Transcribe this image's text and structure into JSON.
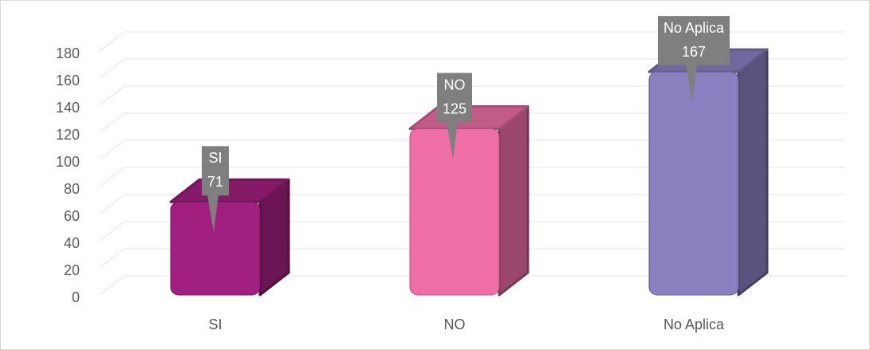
{
  "chart_data": {
    "type": "bar3d",
    "categories": [
      "SI",
      "NO",
      "No Aplica"
    ],
    "values": [
      71,
      125,
      167
    ],
    "colors": [
      "#a1207f",
      "#ee6fa6",
      "#8a80c0"
    ],
    "ylim": [
      0,
      180
    ],
    "yticks": [
      0,
      20,
      40,
      60,
      80,
      100,
      120,
      140,
      160,
      180
    ],
    "grid": true
  }
}
